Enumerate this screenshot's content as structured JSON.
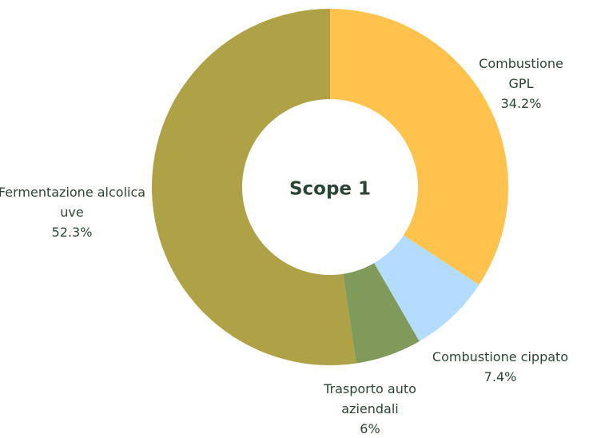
{
  "chart_data": {
    "type": "donut",
    "title": "Scope 1",
    "categories": [
      "Combustione GPL",
      "Combustione cippato",
      "Trasporto auto aziendali",
      "Fermentazione alcolica uve"
    ],
    "values": [
      34.2,
      7.4,
      6,
      52.3
    ],
    "value_labels": [
      "34.2%",
      "7.4%",
      "6%",
      "52.3%"
    ],
    "colors": [
      "#ffc34d",
      "#b3dcff",
      "#7f9a5a",
      "#afa145"
    ]
  }
}
